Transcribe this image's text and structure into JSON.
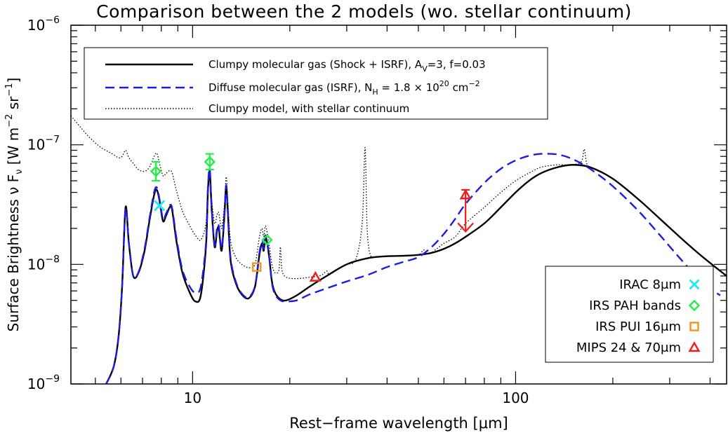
{
  "chart_data": {
    "type": "line",
    "title": "Comparison between the 2 models (wo. stellar continuum)",
    "xlabel_main": "Rest−frame wavelength ",
    "xlabel_unit": "[μm]",
    "ylabel_main": "Surface Brightness ν F",
    "ylabel_sub": "ν",
    "ylabel_unit": " [W m",
    "ylabel_exp1": "−2",
    "ylabel_unit2": " sr",
    "ylabel_exp2": "−1",
    "ylabel_close": "]",
    "xscale": "log",
    "yscale": "log",
    "xlim": [
      4.2,
      450
    ],
    "ylim": [
      1e-09,
      1e-06
    ],
    "x_ticks": [
      {
        "value": 10,
        "label": "10"
      },
      {
        "value": 100,
        "label": "100"
      }
    ],
    "y_ticks": [
      {
        "value": 1e-09,
        "base": "10",
        "exp": "−9"
      },
      {
        "value": 1e-08,
        "base": "10",
        "exp": "−8"
      },
      {
        "value": 1e-07,
        "base": "10",
        "exp": "−7"
      },
      {
        "value": 1e-06,
        "base": "10",
        "exp": "−6"
      }
    ],
    "legend_models": {
      "position": "top-left",
      "entries": [
        {
          "style": "solid-black",
          "parts": [
            {
              "t": "Clumpy molecular gas (Shock + ISRF), A"
            },
            {
              "t": "V",
              "sub": true
            },
            {
              "t": "=3, f=0.03"
            }
          ]
        },
        {
          "style": "dashed-blue",
          "parts": [
            {
              "t": "Diffuse molecular gas (ISRF), N"
            },
            {
              "t": "H",
              "sub": true
            },
            {
              "t": " = 1.8 × 10"
            },
            {
              "t": "20",
              "sup": true
            },
            {
              "t": " cm"
            },
            {
              "t": "−2",
              "sup": true
            }
          ]
        },
        {
          "style": "dotted-black",
          "parts": [
            {
              "t": "Clumpy model, with stellar continuum"
            }
          ]
        }
      ]
    },
    "legend_markers": {
      "position": "bottom-right",
      "entries": [
        {
          "label": "IRAC 8μm",
          "marker": "cross",
          "color": "#29e6f0"
        },
        {
          "label": "IRS PAH bands",
          "marker": "diamond",
          "color": "#22ee44"
        },
        {
          "label": "IRS PUI 16μm",
          "marker": "square",
          "color": "#f0961e"
        },
        {
          "label": "MIPS 24 & 70μm",
          "marker": "triangle",
          "color": "#ee1c1c"
        }
      ]
    },
    "series": [
      {
        "name": "Clumpy molecular gas (Shock + ISRF), A_V=3, f=0.03",
        "color": "#000000",
        "dash": "solid",
        "x": [
          5.4,
          5.7,
          5.9,
          6.05,
          6.2,
          6.35,
          6.55,
          6.8,
          7.1,
          7.35,
          7.6,
          7.75,
          7.9,
          8.1,
          8.3,
          8.6,
          8.9,
          9.3,
          9.8,
          10.2,
          10.6,
          11.0,
          11.15,
          11.3,
          11.45,
          11.7,
          11.9,
          12.05,
          12.3,
          12.55,
          12.7,
          12.85,
          13.1,
          13.6,
          14.2,
          14.9,
          15.6,
          16.1,
          16.4,
          16.6,
          16.8,
          17.05,
          17.3,
          17.6,
          18.0,
          18.7,
          19.5,
          21,
          23,
          26,
          30,
          35,
          40,
          45,
          50,
          55,
          60,
          65,
          70,
          80,
          90,
          100,
          110,
          120,
          135,
          150,
          170,
          200,
          240,
          280,
          330,
          380,
          450
        ],
        "y": [
          1e-09,
          1.4e-09,
          2.5e-09,
          6.5e-09,
          3e-08,
          1.5e-08,
          8e-09,
          8.5e-09,
          1.3e-08,
          2.3e-08,
          3.8e-08,
          4.2e-08,
          3.4e-08,
          2.3e-08,
          2.6e-08,
          3e-08,
          1.6e-08,
          8.5e-09,
          5.8e-09,
          4.9e-09,
          5.5e-09,
          1.4e-08,
          4e-08,
          6e-08,
          3e-08,
          1.4e-08,
          1.9e-08,
          2e-08,
          1.3e-08,
          2.6e-08,
          4.5e-08,
          2.8e-08,
          1.1e-08,
          7e-09,
          5.6e-09,
          5.2e-09,
          6.5e-09,
          1.2e-08,
          1.5e-08,
          1.3e-08,
          1.7e-08,
          1.45e-08,
          1.1e-08,
          7.2e-09,
          5.8e-09,
          5.1e-09,
          5e-09,
          5.5e-09,
          6.5e-09,
          8e-09,
          1e-08,
          1.13e-08,
          1.17e-08,
          1.18e-08,
          1.2e-08,
          1.25e-08,
          1.35e-08,
          1.5e-08,
          1.7e-08,
          2.2e-08,
          3e-08,
          4e-08,
          5e-08,
          5.8e-08,
          6.5e-08,
          6.8e-08,
          6.5e-08,
          5.2e-08,
          3.5e-08,
          2.4e-08,
          1.6e-08,
          1.15e-08,
          8e-09
        ]
      },
      {
        "name": "Diffuse molecular gas (ISRF), N_H = 1.8 × 10^20 cm^-2",
        "color": "#1c1ce0",
        "dash": "dashed",
        "x": [
          5.4,
          5.7,
          5.9,
          6.05,
          6.2,
          6.35,
          6.55,
          6.8,
          7.1,
          7.35,
          7.6,
          7.75,
          7.9,
          8.1,
          8.3,
          8.6,
          8.9,
          9.3,
          9.8,
          10.2,
          10.6,
          11.0,
          11.15,
          11.3,
          11.45,
          11.7,
          11.9,
          12.05,
          12.3,
          12.55,
          12.7,
          12.85,
          13.1,
          13.6,
          14.2,
          14.9,
          15.6,
          16.1,
          16.4,
          16.6,
          16.8,
          17.05,
          17.3,
          17.6,
          18.0,
          18.7,
          19.5,
          21,
          23,
          26,
          30,
          35,
          40,
          45,
          50,
          55,
          60,
          65,
          70,
          80,
          90,
          100,
          110,
          120,
          135,
          150,
          170,
          200,
          240,
          280,
          330,
          380,
          430
        ],
        "y": [
          1e-09,
          1.4e-09,
          2.5e-09,
          6.5e-09,
          2.9e-08,
          1.5e-08,
          8e-09,
          8.6e-09,
          1.35e-08,
          2.4e-08,
          4e-08,
          4.4e-08,
          3.5e-08,
          2.4e-08,
          2.7e-08,
          3.1e-08,
          1.7e-08,
          9e-09,
          6.5e-09,
          5.8e-09,
          6.5e-09,
          1.5e-08,
          4.3e-08,
          6.3e-08,
          3.1e-08,
          1.45e-08,
          2e-08,
          2.1e-08,
          1.35e-08,
          2.7e-08,
          4.6e-08,
          2.9e-08,
          1.15e-08,
          7.2e-09,
          5.7e-09,
          5.3e-09,
          6.6e-09,
          1.25e-08,
          1.55e-08,
          1.35e-08,
          1.75e-08,
          1.5e-08,
          1.1e-08,
          7e-09,
          5.6e-09,
          5e-09,
          4.9e-09,
          5e-09,
          5.6e-09,
          6.3e-09,
          7.2e-09,
          8.2e-09,
          9.5e-09,
          1.05e-08,
          1.15e-08,
          1.4e-08,
          1.8e-08,
          2.4e-08,
          3.2e-08,
          4.8e-08,
          6.3e-08,
          7.4e-08,
          8.1e-08,
          8.4e-08,
          8.3e-08,
          7.6e-08,
          6.3e-08,
          4.5e-08,
          2.8e-08,
          1.75e-08,
          1.05e-08,
          7e-09,
          5.5e-09
        ]
      },
      {
        "name": "Clumpy model, with stellar continuum",
        "color": "#000000",
        "dash": "dotted",
        "x": [
          4.2,
          4.5,
          4.8,
          5.2,
          5.6,
          5.9,
          6.05,
          6.2,
          6.35,
          6.55,
          6.8,
          7.1,
          7.35,
          7.6,
          7.75,
          7.9,
          8.1,
          8.3,
          8.6,
          8.9,
          9.3,
          9.8,
          10.2,
          10.6,
          11.0,
          11.15,
          11.3,
          11.45,
          11.7,
          11.9,
          12.05,
          12.3,
          12.55,
          12.7,
          12.85,
          13.1,
          13.6,
          14.2,
          14.9,
          15.6,
          16.1,
          16.4,
          16.6,
          16.8,
          17.05,
          17.3,
          17.6,
          18.0,
          18.5,
          18.7,
          18.9,
          19.5,
          21,
          23,
          25,
          26,
          26.5,
          28,
          30,
          32,
          33.5,
          34.2,
          34.7,
          35.5,
          37,
          40,
          45,
          50,
          52,
          54,
          57,
          60,
          65,
          70,
          80,
          90,
          100,
          110,
          120,
          135,
          150,
          160,
          163,
          166,
          170,
          200,
          240,
          280,
          330,
          380,
          450
        ],
        "y": [
          1.75e-07,
          1.4e-07,
          1.15e-07,
          9.5e-08,
          8.5e-08,
          7.8e-08,
          8e-08,
          9e-08,
          7.8e-08,
          7e-08,
          6.2e-08,
          6e-08,
          6.5e-08,
          8e-08,
          8.5e-08,
          7e-08,
          5.5e-08,
          5.8e-08,
          6e-08,
          4.2e-08,
          2.8e-08,
          2.1e-08,
          1.75e-08,
          1.6e-08,
          2.2e-08,
          4.5e-08,
          6.5e-08,
          3.6e-08,
          2.2e-08,
          2.6e-08,
          2.7e-08,
          2e-08,
          3.2e-08,
          5.4e-08,
          3.5e-08,
          1.6e-08,
          1.15e-08,
          1e-08,
          9.4e-09,
          1e-08,
          1.7e-08,
          2e-08,
          1.7e-08,
          2.1e-08,
          1.8e-08,
          1.4e-08,
          1e-08,
          8.5e-09,
          9e-09,
          1.4e-08,
          9e-09,
          7.8e-09,
          7.6e-09,
          7.8e-09,
          8.1e-09,
          8.8e-09,
          8.2e-09,
          9e-09,
          1e-08,
          1.1e-08,
          2.2e-08,
          9.5e-08,
          2e-08,
          1.2e-08,
          1.15e-08,
          1.18e-08,
          1.18e-08,
          1.2e-08,
          1.32e-08,
          1.22e-08,
          1.35e-08,
          1.5e-08,
          1.7e-08,
          2.2e-08,
          3e-08,
          4e-08,
          5e-08,
          5.8e-08,
          6.5e-08,
          6.8e-08,
          6.8e-08,
          7.3e-08,
          9.2e-08,
          7e-08,
          6.5e-08,
          5.2e-08,
          3.5e-08,
          2.4e-08,
          1.6e-08,
          1.15e-08,
          8e-09
        ]
      }
    ],
    "observations": [
      {
        "name": "IRAC 8μm",
        "marker": "cross",
        "color": "#29e6f0",
        "x": 7.9,
        "y": 3.1e-08
      },
      {
        "name": "IRS PAH bands",
        "marker": "diamond",
        "color": "#22ee44",
        "x": 7.7,
        "y": 6e-08,
        "err_lo": 5e-08,
        "err_hi": 7.2e-08
      },
      {
        "name": "IRS PAH bands",
        "marker": "diamond",
        "color": "#22ee44",
        "x": 11.3,
        "y": 7.2e-08,
        "err_lo": 6.2e-08,
        "err_hi": 8.4e-08
      },
      {
        "name": "IRS PAH bands",
        "marker": "diamond",
        "color": "#22ee44",
        "x": 17.0,
        "y": 1.6e-08
      },
      {
        "name": "IRS PUI 16μm",
        "marker": "square",
        "color": "#f0961e",
        "x": 15.8,
        "y": 9.5e-09
      },
      {
        "name": "MIPS 24 & 70μm",
        "marker": "triangle",
        "color": "#ee1c1c",
        "x": 24,
        "y": 7.8e-09
      },
      {
        "name": "MIPS 24 & 70μm",
        "marker": "triangle",
        "color": "#ee1c1c",
        "x": 70,
        "y": 3.8e-08,
        "err_hi": 4.2e-08,
        "upper_limit": true
      }
    ]
  }
}
